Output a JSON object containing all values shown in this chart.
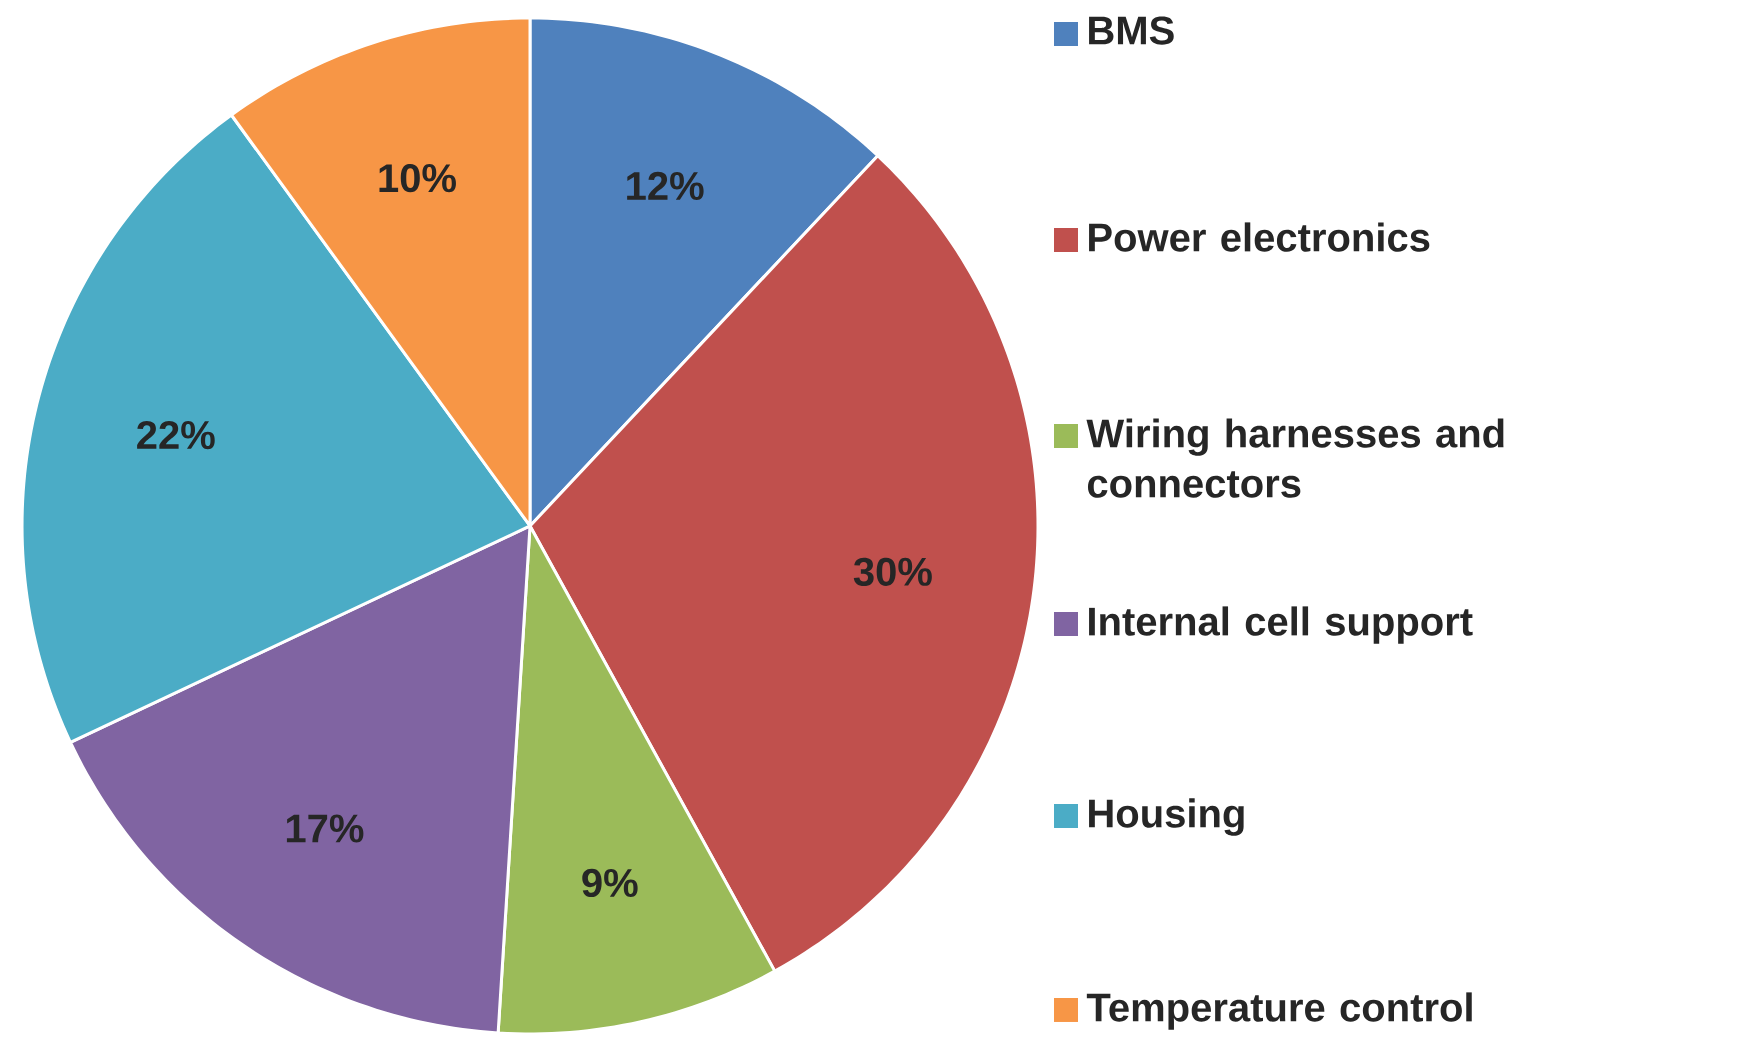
{
  "chart_data": {
    "type": "pie",
    "categories": [
      "BMS",
      "Power electronics",
      "Wiring harnesses and connectors",
      "Internal cell support",
      "Housing",
      "Temperature control"
    ],
    "values": [
      12,
      30,
      9,
      17,
      22,
      10
    ],
    "value_labels": [
      "12%",
      "30%",
      "9%",
      "17%",
      "22%",
      "10%"
    ],
    "colors": [
      "#4f81bd",
      "#c0504d",
      "#9bbb59",
      "#8064a2",
      "#4bacc6",
      "#f79646"
    ],
    "legend": "right"
  }
}
